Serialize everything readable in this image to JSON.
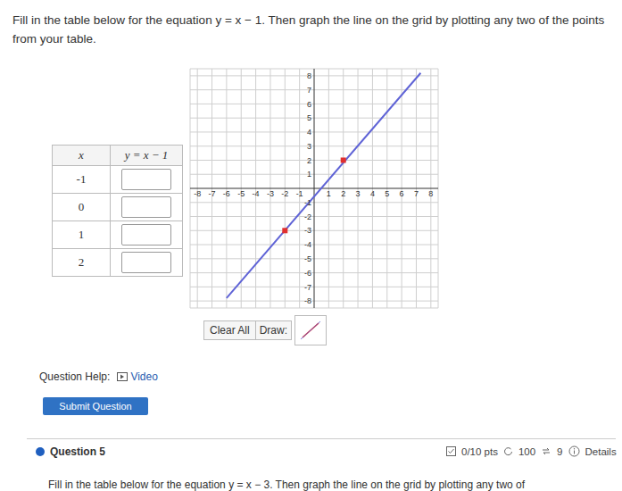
{
  "instructions": "Fill in the table below for the equation y = x − 1. Then graph the line on the grid by plotting any two of the points from your table.",
  "table": {
    "header": [
      "x",
      "y = x − 1"
    ],
    "rows": [
      -1,
      0,
      1,
      2
    ]
  },
  "chart_data": {
    "type": "line",
    "xlim": [
      -8.5,
      8.5
    ],
    "ylim": [
      -8.5,
      8.5
    ],
    "xticks": [
      -8,
      -7,
      -6,
      -5,
      -4,
      -3,
      -2,
      -1,
      1,
      2,
      3,
      4,
      5,
      6,
      7,
      8
    ],
    "yticks": [
      -8,
      -7,
      -6,
      -5,
      -4,
      -3,
      -2,
      -1,
      1,
      2,
      3,
      4,
      5,
      6,
      7,
      8
    ],
    "grid": true,
    "series": [
      {
        "type": "line",
        "color": "#5f63d6",
        "x": [
          -6,
          7.3
        ],
        "values": [
          -7.8,
          8.2
        ]
      },
      {
        "type": "scatter",
        "color": "#e0302f",
        "marker": "square",
        "x": [
          -2,
          2
        ],
        "values": [
          -3,
          2
        ]
      }
    ]
  },
  "controls": {
    "clear": "Clear All",
    "draw": "Draw:"
  },
  "help": {
    "label": "Question Help:",
    "video": "Video"
  },
  "submit": "Submit Question",
  "next_question": {
    "title": "Question 5",
    "points": "0/10 pts",
    "attempts": "100",
    "retries": "9",
    "details": "Details",
    "text": "Fill in the table below for the equation y = x − 3. Then graph the line on the grid by plotting any two of"
  }
}
